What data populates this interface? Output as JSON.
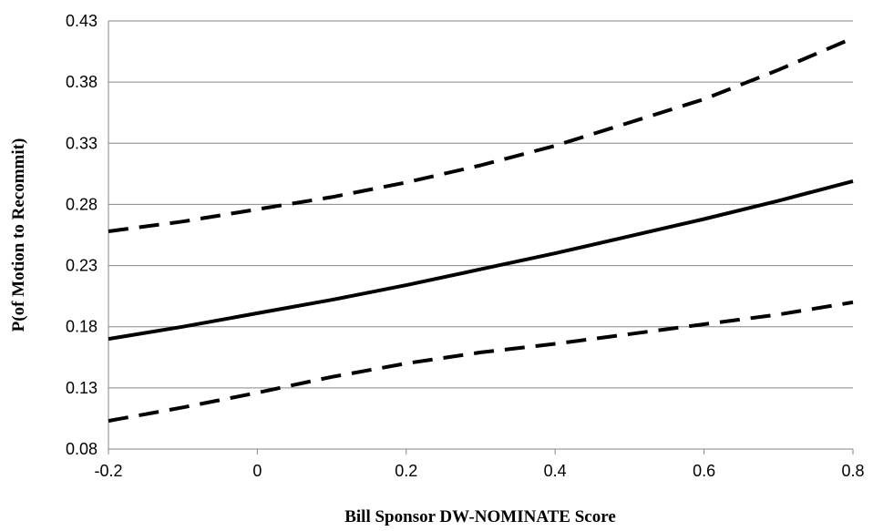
{
  "chart_data": {
    "type": "line",
    "title": "",
    "xlabel": "Bill Sponsor DW-NOMINATE Score",
    "ylabel": "P(of Motion to Recommit)",
    "xlim": [
      -0.2,
      0.8
    ],
    "ylim": [
      0.08,
      0.43
    ],
    "x_ticks": [
      -0.2,
      0,
      0.2,
      0.4,
      0.6,
      0.8
    ],
    "x_tick_labels": [
      "-0.2",
      "0",
      "0.2",
      "0.4",
      "0.6",
      "0.8"
    ],
    "y_ticks": [
      0.08,
      0.13,
      0.18,
      0.23,
      0.28,
      0.33,
      0.38,
      0.43
    ],
    "y_tick_labels": [
      "0.08",
      "0.13",
      "0.18",
      "0.23",
      "0.28",
      "0.33",
      "0.38",
      "0.43"
    ],
    "grid": "horizontal",
    "legend": "none",
    "x": [
      -0.2,
      -0.1,
      0,
      0.1,
      0.2,
      0.3,
      0.4,
      0.5,
      0.6,
      0.7,
      0.8
    ],
    "series": [
      {
        "style": "dashed",
        "color": "#000000",
        "values": [
          0.258,
          0.266,
          0.276,
          0.286,
          0.298,
          0.312,
          0.328,
          0.347,
          0.366,
          0.39,
          0.416
        ]
      },
      {
        "style": "solid",
        "color": "#000000",
        "values": [
          0.17,
          0.18,
          0.191,
          0.202,
          0.214,
          0.227,
          0.24,
          0.254,
          0.268,
          0.283,
          0.299
        ]
      },
      {
        "style": "dashed",
        "color": "#000000",
        "values": [
          0.103,
          0.114,
          0.126,
          0.139,
          0.15,
          0.159,
          0.166,
          0.174,
          0.182,
          0.19,
          0.2
        ]
      }
    ]
  }
}
